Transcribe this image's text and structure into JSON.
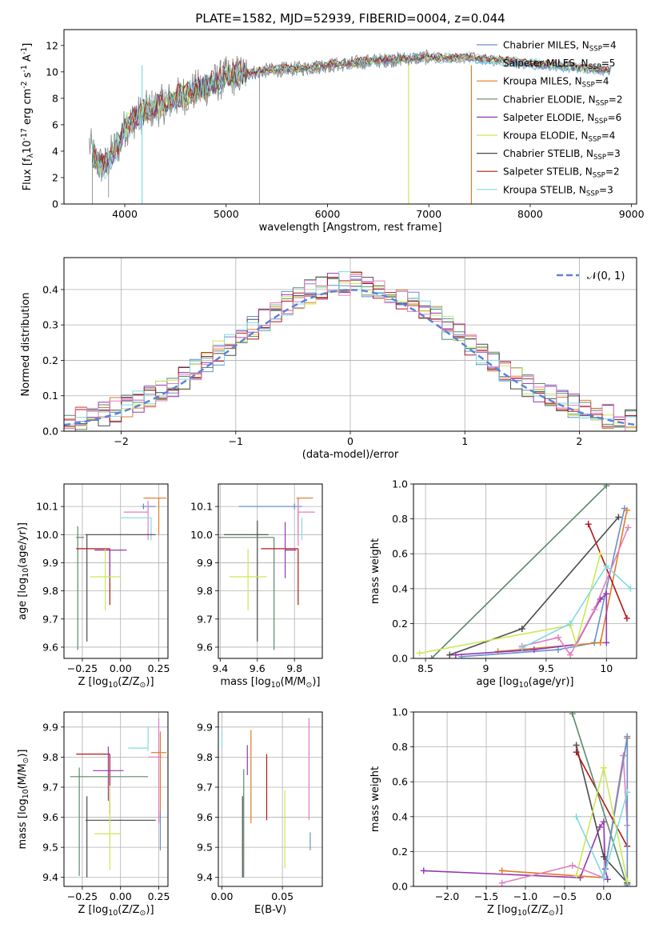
{
  "chart_data": [
    {
      "id": "spectrum",
      "type": "line",
      "title": "PLATE=1582, MJD=52939, FIBERID=0004, z=0.044",
      "xlabel": "wavelength [Angstrom, rest frame]",
      "ylabel": "Flux [f$_\\lambda$10$^{-17}$ erg cm$^{-2}$ s$^{-1}$ A$^{-1}$]",
      "xlim": [
        3400,
        9050
      ],
      "ylim": [
        0,
        13.2
      ],
      "xticks": [
        4000,
        5000,
        6000,
        7000,
        8000,
        9000
      ],
      "yticks": [
        0,
        2,
        4,
        6,
        8,
        10,
        12
      ],
      "grid": false,
      "legend_position": "top-right",
      "data_series": {
        "name": "",
        "color": "#808080",
        "x": [
          3650,
          3700,
          3750,
          3800,
          3850,
          3900,
          3950,
          4000,
          4100,
          4200,
          4300,
          4400,
          4500,
          4600,
          4700,
          4800,
          4900,
          5000,
          5200,
          5400,
          5600,
          5800,
          6000,
          6200,
          6400,
          6600,
          6800,
          7000,
          7200,
          7400,
          7600,
          7800,
          8000,
          8200,
          8400,
          8600,
          8800
        ],
        "y": [
          4.5,
          3.5,
          3.0,
          2.8,
          3.5,
          4.2,
          4.6,
          5.8,
          6.5,
          7.0,
          7.3,
          7.6,
          8.0,
          8.3,
          8.6,
          8.9,
          9.2,
          9.6,
          9.9,
          10.1,
          10.2,
          10.3,
          10.5,
          10.6,
          10.8,
          10.9,
          11.0,
          11.1,
          11.0,
          11.1,
          10.9,
          10.8,
          10.6,
          10.5,
          10.4,
          10.2,
          10.1
        ]
      },
      "model_series": [
        {
          "name": "Chabrier MILES, N$_{SSP}$=4",
          "color": "#6890c8"
        },
        {
          "name": "Salpeter MILES, N$_{SSP}$=5",
          "color": "#7ad3df"
        },
        {
          "name": "Kroupa MILES, N$_{SSP}$=4",
          "color": "#e07c28"
        },
        {
          "name": "Chabrier ELODIE, N$_{SSP}$=2",
          "color": "#5a8a6a"
        },
        {
          "name": "Salpeter ELODIE, N$_{SSP}$=6",
          "color": "#9438b0"
        },
        {
          "name": "Kroupa ELODIE, N$_{SSP}$=4",
          "color": "#cde855"
        },
        {
          "name": "Chabrier STELIB, N$_{SSP}$=3",
          "color": "#4a4a4a"
        },
        {
          "name": "Salpeter STELIB, N$_{SSP}$=2",
          "color": "#b01818"
        },
        {
          "name": "Kroupa STELIB, N$_{SSP}$=3",
          "color": "#80dae0"
        }
      ]
    },
    {
      "id": "residuals",
      "type": "bar",
      "xlabel": "(data-model)/error",
      "ylabel": "Normed distribution",
      "xlim": [
        -2.5,
        2.5
      ],
      "ylim": [
        0,
        0.49
      ],
      "xticks": [
        -2,
        -1,
        0,
        1,
        2
      ],
      "yticks": [
        0.0,
        0.1,
        0.2,
        0.3,
        0.4
      ],
      "grid": true,
      "legend_position": "top-right",
      "reference_curve": {
        "name": "$\\mathcal{N}(0, 1)$",
        "color": "#5b84d8",
        "style": "dashed"
      },
      "histogram_colors": [
        "#6890c8",
        "#e07c28",
        "#5a8a6a",
        "#9438b0",
        "#cde855",
        "#4a4a4a",
        "#b01818",
        "#80dae0",
        "#e07fc0"
      ]
    },
    {
      "id": "age_vs_Z",
      "type": "scatter",
      "xlabel": "Z [log$_{10}$(Z/Z$_\\odot$)]",
      "ylabel": "age  [log$_{10}$(age/yr)]",
      "xlim": [
        -0.37,
        0.31
      ],
      "ylim": [
        9.56,
        10.18
      ],
      "xticks": [
        -0.25,
        0.0,
        0.25
      ],
      "xtick_labels": [
        "−0.25",
        "0.00",
        "0.25"
      ],
      "yticks": [
        9.6,
        9.7,
        9.8,
        9.9,
        10.0,
        10.1
      ],
      "grid": true,
      "points": [
        {
          "color": "#e07c28",
          "x": 0.25,
          "y": 10.13,
          "xerr": [
            0.1,
            0.05
          ],
          "yerr": [
            0.13,
            0.0
          ]
        },
        {
          "color": "#6890c8",
          "x": 0.15,
          "y": 10.1,
          "xerr": [
            0.01,
            0.08
          ],
          "yerr": [
            0.01,
            0.01
          ]
        },
        {
          "color": "#e07fc0",
          "x": 0.18,
          "y": 10.08,
          "xerr": [
            0.16,
            0.0
          ],
          "yerr": [
            0.1,
            0.04
          ]
        },
        {
          "color": "#80dae0",
          "x": 0.2,
          "y": 10.06,
          "xerr": [
            0.2,
            0.0
          ],
          "yerr": [
            0.08,
            0.0
          ]
        },
        {
          "color": "#4a4a4a",
          "x": -0.22,
          "y": 10.0,
          "xerr": [
            0.01,
            0.45
          ],
          "yerr": [
            0.38,
            0.0
          ]
        },
        {
          "color": "#5a8a6a",
          "x": -0.28,
          "y": 9.99,
          "xerr": [
            0.01,
            0.04
          ],
          "yerr": [
            0.4,
            0.04
          ]
        },
        {
          "color": "#b01818",
          "x": -0.07,
          "y": 9.95,
          "xerr": [
            0.22,
            0.0
          ],
          "yerr": [
            0.2,
            0.0
          ]
        },
        {
          "color": "#9438b0",
          "x": -0.07,
          "y": 9.945,
          "xerr": [
            0.1,
            0.11
          ],
          "yerr": [
            0.1,
            0.0
          ]
        },
        {
          "color": "#cde855",
          "x": -0.1,
          "y": 9.85,
          "xerr": [
            0.1,
            0.1
          ],
          "yerr": [
            0.12,
            0.1
          ]
        }
      ]
    },
    {
      "id": "age_vs_mass",
      "type": "scatter",
      "xlabel": "mass [log$_{10}$(M/M$_\\odot$)]",
      "ylabel": "",
      "xlim": [
        9.39,
        9.95
      ],
      "ylim": [
        9.56,
        10.18
      ],
      "xticks": [
        9.4,
        9.6,
        9.8
      ],
      "yticks": [
        9.6,
        9.7,
        9.8,
        9.9,
        10.0,
        10.1
      ],
      "grid": true,
      "points": [
        {
          "color": "#e07c28",
          "x": 9.82,
          "y": 10.13,
          "xerr": [
            0.01,
            0.08
          ],
          "yerr": [
            0.13,
            0.0
          ]
        },
        {
          "color": "#6890c8",
          "x": 9.8,
          "y": 10.1,
          "xerr": [
            0.3,
            0.04
          ],
          "yerr": [
            0.01,
            0.01
          ]
        },
        {
          "color": "#e07fc0",
          "x": 9.82,
          "y": 10.08,
          "xerr": [
            0.0,
            0.09
          ],
          "yerr": [
            0.12,
            0.04
          ]
        },
        {
          "color": "#80dae0",
          "x": 9.84,
          "y": 10.06,
          "xerr": [
            0.0,
            0.0
          ],
          "yerr": [
            0.08,
            0.0
          ]
        },
        {
          "color": "#4a4a4a",
          "x": 9.6,
          "y": 10.0,
          "xerr": [
            0.18,
            0.06
          ],
          "yerr": [
            0.38,
            0.05
          ]
        },
        {
          "color": "#5a8a6a",
          "x": 9.69,
          "y": 9.99,
          "xerr": [
            0.3,
            0.0
          ],
          "yerr": [
            0.4,
            0.0
          ]
        },
        {
          "color": "#b01818",
          "x": 9.82,
          "y": 9.95,
          "xerr": [
            0.2,
            0.0
          ],
          "yerr": [
            0.2,
            0.0
          ]
        },
        {
          "color": "#9438b0",
          "x": 9.75,
          "y": 9.945,
          "xerr": [
            0.0,
            0.06
          ],
          "yerr": [
            0.1,
            0.1
          ]
        },
        {
          "color": "#cde855",
          "x": 9.55,
          "y": 9.85,
          "xerr": [
            0.1,
            0.1
          ],
          "yerr": [
            0.12,
            0.1
          ]
        }
      ]
    },
    {
      "id": "massweight_vs_age",
      "type": "line",
      "xlabel": "age  [log$_{10}$(age/yr)]",
      "ylabel": "mass weight",
      "xlim": [
        8.4,
        10.25
      ],
      "ylim": [
        0,
        1.0
      ],
      "xticks": [
        8.5,
        9.0,
        9.5,
        10.0
      ],
      "yticks": [
        0.0,
        0.2,
        0.4,
        0.6,
        0.8,
        1.0
      ],
      "grid": true,
      "series": [
        {
          "color": "#5a8a6a",
          "x": [
            8.55,
            10.0
          ],
          "y": [
            0.0,
            0.99
          ]
        },
        {
          "color": "#4a4a4a",
          "x": [
            8.7,
            9.3,
            10.1
          ],
          "y": [
            0.02,
            0.17,
            0.81
          ]
        },
        {
          "color": "#6890c8",
          "x": [
            8.8,
            9.6,
            9.9,
            10.15
          ],
          "y": [
            0.01,
            0.05,
            0.09,
            0.86
          ]
        },
        {
          "color": "#e07c28",
          "x": [
            9.1,
            9.95,
            10.17
          ],
          "y": [
            0.04,
            0.09,
            0.85
          ]
        },
        {
          "color": "#b01818",
          "x": [
            9.85,
            10.17
          ],
          "y": [
            0.77,
            0.23
          ]
        },
        {
          "color": "#9438b0",
          "x": [
            8.75,
            9.4,
            9.75,
            9.95,
            10.0,
            10.0
          ],
          "y": [
            0.02,
            0.05,
            0.08,
            0.34,
            0.37,
            0.09
          ]
        },
        {
          "color": "#cde855",
          "x": [
            8.45,
            9.7,
            9.75,
            9.95
          ],
          "y": [
            0.03,
            0.19,
            0.08,
            0.6
          ]
        },
        {
          "color": "#e07fc0",
          "x": [
            9.3,
            9.6,
            9.7,
            9.9,
            10.18
          ],
          "y": [
            0.07,
            0.12,
            0.02,
            0.28,
            0.75
          ]
        },
        {
          "color": "#80dae0",
          "x": [
            9.3,
            9.7,
            10.0,
            10.2
          ],
          "y": [
            0.06,
            0.2,
            0.53,
            0.4
          ]
        }
      ]
    },
    {
      "id": "mass_vs_Z",
      "type": "scatter",
      "xlabel": "Z [log$_{10}$(Z/Z$_\\odot$)]",
      "ylabel": "mass [log$_{10}$(M/M$_\\odot$)]",
      "xlim": [
        -0.37,
        0.31
      ],
      "ylim": [
        9.37,
        9.95
      ],
      "xticks": [
        -0.25,
        0.0,
        0.25
      ],
      "xtick_labels": [
        "−0.25",
        "0.00",
        "0.25"
      ],
      "yticks": [
        9.4,
        9.5,
        9.6,
        9.7,
        9.8,
        9.9
      ],
      "grid": true,
      "points": [
        {
          "color": "#e07fc0",
          "x": 0.25,
          "y": 9.8,
          "xerr": [
            0.07,
            0.02
          ],
          "yerr": [
            0.22,
            0.13
          ]
        },
        {
          "color": "#80dae0",
          "x": 0.18,
          "y": 9.83,
          "xerr": [
            0.13,
            0.0
          ],
          "yerr": [
            0.01,
            0.07
          ]
        },
        {
          "color": "#e07c28",
          "x": 0.26,
          "y": 9.815,
          "xerr": [
            0.06,
            0.04
          ],
          "yerr": [
            0.23,
            0.07
          ]
        },
        {
          "color": "#6890c8",
          "x": 0.26,
          "y": 9.62,
          "xerr": [
            0.0,
            0.0
          ],
          "yerr": [
            0.13,
            0.0
          ]
        },
        {
          "color": "#b01818",
          "x": -0.07,
          "y": 9.81,
          "xerr": [
            0.22,
            0.0
          ],
          "yerr": [
            0.2,
            0.0
          ]
        },
        {
          "color": "#9438b0",
          "x": -0.08,
          "y": 9.755,
          "xerr": [
            0.1,
            0.1
          ],
          "yerr": [
            0.1,
            0.08
          ]
        },
        {
          "color": "#5a8a6a",
          "x": -0.27,
          "y": 9.735,
          "xerr": [
            0.06,
            0.45
          ],
          "yerr": [
            0.33,
            0.03
          ]
        },
        {
          "color": "#4a4a4a",
          "x": -0.22,
          "y": 9.59,
          "xerr": [
            0.01,
            0.45
          ],
          "yerr": [
            0.19,
            0.08
          ]
        },
        {
          "color": "#cde855",
          "x": -0.07,
          "y": 9.545,
          "xerr": [
            0.1,
            0.07
          ],
          "yerr": [
            0.12,
            0.16
          ]
        }
      ]
    },
    {
      "id": "mass_vs_ebv",
      "type": "scatter",
      "xlabel": "E(B-V)",
      "ylabel": "",
      "xlim": [
        -0.003,
        0.083
      ],
      "ylim": [
        9.37,
        9.95
      ],
      "xticks": [
        0.0,
        0.05
      ],
      "xtick_labels": [
        "0.00",
        "0.05"
      ],
      "yticks": [
        9.4,
        9.5,
        9.6,
        9.7,
        9.8,
        9.9
      ],
      "grid": true,
      "points": [
        {
          "color": "#80dae0",
          "x": 0.0,
          "y": 9.87,
          "yerr": [
            0.04,
            0.02
          ]
        },
        {
          "color": "#4a4a4a",
          "x": 0.017,
          "y": 9.55,
          "yerr": [
            0.15,
            0.12
          ]
        },
        {
          "color": "#5a8a6a",
          "x": 0.018,
          "y": 9.65,
          "yerr": [
            0.25,
            0.11
          ]
        },
        {
          "color": "#9438b0",
          "x": 0.021,
          "y": 9.8,
          "yerr": [
            0.06,
            0.04
          ]
        },
        {
          "color": "#e07c28",
          "x": 0.024,
          "y": 9.74,
          "yerr": [
            0.16,
            0.15
          ]
        },
        {
          "color": "#b01818",
          "x": 0.037,
          "y": 9.7,
          "yerr": [
            0.11,
            0.11
          ]
        },
        {
          "color": "#cde855",
          "x": 0.052,
          "y": 9.55,
          "yerr": [
            0.12,
            0.14
          ]
        },
        {
          "color": "#e07fc0",
          "x": 0.072,
          "y": 9.8,
          "yerr": [
            0.21,
            0.13
          ]
        },
        {
          "color": "#6890c8",
          "x": 0.073,
          "y": 9.55,
          "yerr": [
            0.06,
            0.0
          ]
        }
      ]
    },
    {
      "id": "massweight_vs_Z",
      "type": "line",
      "xlabel": "Z [log$_{10}$(Z/Z$_\\odot$)]",
      "ylabel": "mass weight",
      "xlim": [
        -2.43,
        0.42
      ],
      "ylim": [
        0,
        1.0
      ],
      "xticks": [
        -2.0,
        -1.5,
        -1.0,
        -0.5,
        0.0
      ],
      "xtick_labels": [
        "−2.0",
        "−1.5",
        "−1.0",
        "−0.5",
        "0.0"
      ],
      "yticks": [
        0.0,
        0.2,
        0.4,
        0.6,
        0.8,
        1.0
      ],
      "grid": true,
      "series": [
        {
          "color": "#9438b0",
          "x": [
            -2.3,
            -0.3,
            -0.05,
            0.0,
            0.02,
            0.05
          ],
          "y": [
            0.09,
            0.05,
            0.34,
            0.37,
            0.1,
            0.04
          ]
        },
        {
          "color": "#e07c28",
          "x": [
            -1.3,
            0.0,
            0.3,
            0.3
          ],
          "y": [
            0.09,
            0.05,
            0.85,
            0.02
          ]
        },
        {
          "color": "#e07fc0",
          "x": [
            -1.3,
            -0.4,
            0.0,
            0.25,
            0.3
          ],
          "y": [
            0.02,
            0.12,
            0.05,
            0.75,
            0.35
          ]
        },
        {
          "color": "#4a4a4a",
          "x": [
            -0.35,
            0.0,
            0.3
          ],
          "y": [
            0.81,
            0.17,
            0.02
          ]
        },
        {
          "color": "#b01818",
          "x": [
            -0.35,
            0.3
          ],
          "y": [
            0.77,
            0.23
          ]
        },
        {
          "color": "#5a8a6a",
          "x": [
            -0.4,
            0.3
          ],
          "y": [
            0.99,
            0.0
          ]
        },
        {
          "color": "#6890c8",
          "x": [
            0.0,
            0.3,
            0.3
          ],
          "y": [
            0.05,
            0.86,
            0.01
          ]
        },
        {
          "color": "#cde855",
          "x": [
            -0.35,
            0.0,
            0.3
          ],
          "y": [
            0.06,
            0.68,
            0.03
          ]
        },
        {
          "color": "#80dae0",
          "x": [
            -0.35,
            0.0,
            0.3
          ],
          "y": [
            0.4,
            0.05,
            0.54
          ]
        }
      ]
    }
  ]
}
